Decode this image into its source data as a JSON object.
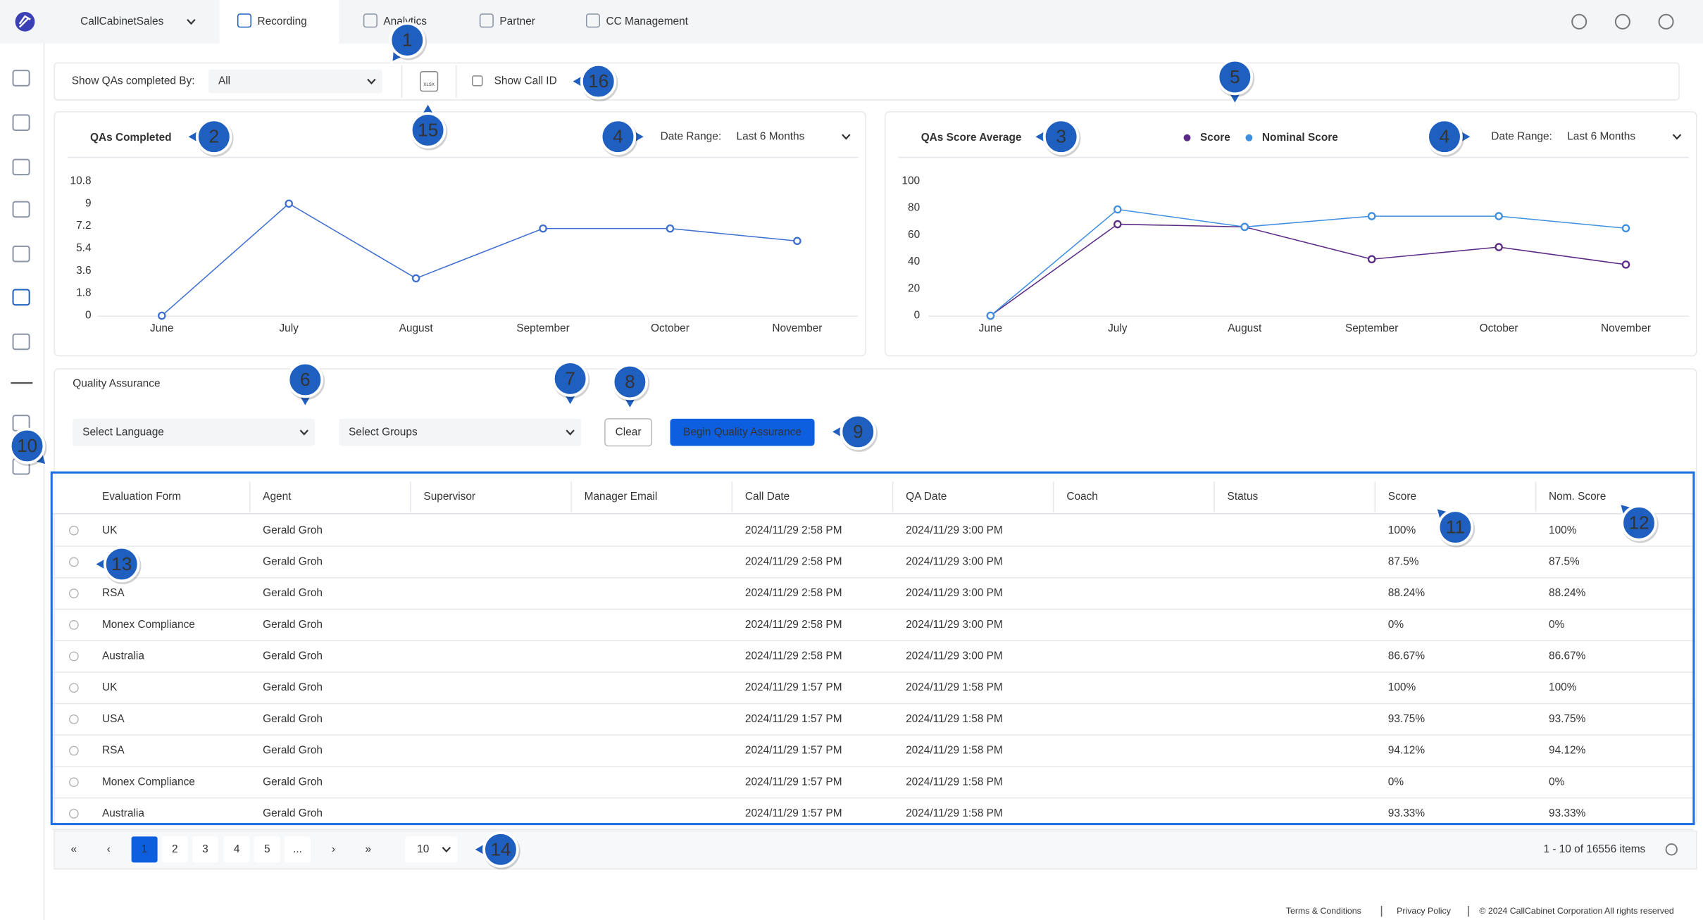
{
  "nav": {
    "account": "CallCabinetSales",
    "tabs": [
      "Recording",
      "Analytics",
      "Partner",
      "CC Management"
    ]
  },
  "filter_bar": {
    "label": "Show QAs completed By:",
    "select": "All",
    "export": "XLSX",
    "checkbox": "Show Call ID"
  },
  "charts": [
    {
      "type": "line",
      "title": "QAs Completed",
      "date_range_label": "Date Range:",
      "date_range": "Last 6 Months",
      "categories": [
        "June",
        "July",
        "August",
        "September",
        "October",
        "November"
      ],
      "series": [
        {
          "color": "#3f6fd1",
          "values": [
            0,
            9,
            3,
            7,
            7,
            6
          ]
        }
      ],
      "ylim": [
        0,
        10.8
      ],
      "yticks": [
        0,
        1.8,
        3.6,
        5.4,
        7.2,
        9,
        10.8
      ],
      "grid": false
    },
    {
      "type": "line",
      "title": "QAs Score Average",
      "date_range_label": "Date Range:",
      "date_range": "Last 6 Months",
      "categories": [
        "June",
        "July",
        "August",
        "September",
        "October",
        "November"
      ],
      "series": [
        {
          "name": "Score",
          "color": "#5b2a86",
          "values": [
            0,
            68,
            66,
            42,
            51,
            38
          ]
        },
        {
          "name": "Nominal Score",
          "color": "#3f8ee0",
          "values": [
            0,
            79,
            66,
            74,
            74,
            65
          ]
        }
      ],
      "ylim": [
        0,
        100
      ],
      "yticks": [
        0,
        20,
        40,
        60,
        80,
        100
      ],
      "grid": false
    }
  ],
  "qa_panel": {
    "title": "Quality Assurance",
    "language": "Select Language",
    "groups": "Select Groups",
    "clear": "Clear",
    "begin": "Begin Quality Assurance"
  },
  "table": {
    "columns": [
      "Evaluation Form",
      "Agent",
      "Supervisor",
      "Manager Email",
      "Call Date",
      "QA Date",
      "Coach",
      "Status",
      "Score",
      "Nom. Score"
    ],
    "rows": [
      [
        "UK",
        "Gerald Groh",
        null,
        null,
        "2024/11/29 2:58 PM",
        "2024/11/29 3:00 PM",
        null,
        null,
        "100%",
        "100%"
      ],
      [
        null,
        "Gerald Groh",
        null,
        null,
        "2024/11/29 2:58 PM",
        "2024/11/29 3:00 PM",
        null,
        null,
        "87.5%",
        "87.5%"
      ],
      [
        "RSA",
        "Gerald Groh",
        null,
        null,
        "2024/11/29 2:58 PM",
        "2024/11/29 3:00 PM",
        null,
        null,
        "88.24%",
        "88.24%"
      ],
      [
        "Monex Compliance",
        "Gerald Groh",
        null,
        null,
        "2024/11/29 2:58 PM",
        "2024/11/29 3:00 PM",
        null,
        null,
        "0%",
        "0%"
      ],
      [
        "Australia",
        "Gerald Groh",
        null,
        null,
        "2024/11/29 2:58 PM",
        "2024/11/29 3:00 PM",
        null,
        null,
        "86.67%",
        "86.67%"
      ],
      [
        "UK",
        "Gerald Groh",
        null,
        null,
        "2024/11/29 1:57 PM",
        "2024/11/29 1:58 PM",
        null,
        null,
        "100%",
        "100%"
      ],
      [
        "USA",
        "Gerald Groh",
        null,
        null,
        "2024/11/29 1:57 PM",
        "2024/11/29 1:58 PM",
        null,
        null,
        "93.75%",
        "93.75%"
      ],
      [
        "RSA",
        "Gerald Groh",
        null,
        null,
        "2024/11/29 1:57 PM",
        "2024/11/29 1:58 PM",
        null,
        null,
        "94.12%",
        "94.12%"
      ],
      [
        "Monex Compliance",
        "Gerald Groh",
        null,
        null,
        "2024/11/29 1:57 PM",
        "2024/11/29 1:58 PM",
        null,
        null,
        "0%",
        "0%"
      ],
      [
        "Australia",
        "Gerald Groh",
        null,
        null,
        "2024/11/29 1:57 PM",
        "2024/11/29 1:58 PM",
        null,
        null,
        "93.33%",
        "93.33%"
      ]
    ]
  },
  "pagination": {
    "first": "«",
    "prev": "‹",
    "pages": [
      1,
      2,
      3,
      4,
      5,
      "..."
    ],
    "next": "›",
    "last": "»",
    "page_size": 10,
    "summary": "1 - 10 of 16556 items"
  },
  "footer": {
    "terms": "Terms & Conditions",
    "privacy": "Privacy Policy",
    "copyright": "© 2024 CallCabinet Corporation All rights reserved"
  },
  "callouts": [
    "1",
    "2",
    "3",
    "4",
    "4",
    "5",
    "6",
    "7",
    "8",
    "9",
    "10",
    "11",
    "12",
    "13",
    "14",
    "15",
    "16"
  ]
}
